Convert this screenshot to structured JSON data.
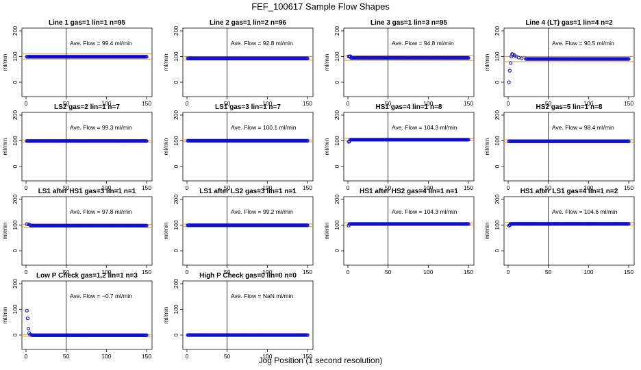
{
  "page": {
    "title": "FEF_100617  Sample Flow Shapes",
    "x_caption": "Jog Position (1 second resolution)"
  },
  "colors": {
    "points": "#1010cc",
    "ref_line": "#d49a3a",
    "axis": "#000000"
  },
  "chart_data": [
    {
      "type": "scatter",
      "title": "Line 1 gas=1 lin=1 n=95",
      "ylabel": "ml/min",
      "xlim": [
        0,
        150
      ],
      "ylim": [
        -20,
        200
      ],
      "xticks": [
        0,
        50,
        100,
        150
      ],
      "yticks": [
        0,
        100,
        200
      ],
      "vline_x": 50,
      "ref_band": [
        90,
        110
      ],
      "annotation": "Ave. Flow = 99.4  ml/min",
      "level": 99.4,
      "lead": []
    },
    {
      "type": "scatter",
      "title": "Line 2 gas=1 lin=2 n=96",
      "ylabel": "ml/min",
      "xlim": [
        0,
        150
      ],
      "ylim": [
        -20,
        200
      ],
      "xticks": [
        0,
        50,
        100,
        150
      ],
      "yticks": [
        0,
        100,
        200
      ],
      "vline_x": 50,
      "ref_band": [
        86,
        100
      ],
      "annotation": "Ave. Flow = 92.8  ml/min",
      "level": 92.8,
      "lead": []
    },
    {
      "type": "scatter",
      "title": "Line 3 gas=1 lin=3 n=95",
      "ylabel": "ml/min",
      "xlim": [
        0,
        150
      ],
      "ylim": [
        -20,
        200
      ],
      "xticks": [
        0,
        50,
        100,
        150
      ],
      "yticks": [
        0,
        100,
        200
      ],
      "vline_x": 50,
      "ref_band": [
        85,
        105
      ],
      "annotation": "Ave. Flow = 94.8  ml/min",
      "level": 94.8,
      "lead": [
        [
          1,
          100
        ],
        [
          2,
          101
        ],
        [
          3,
          101
        ]
      ]
    },
    {
      "type": "scatter",
      "title": "Line 4 (LT) gas=1 lin=4 n=2",
      "ylabel": "ml/min",
      "xlim": [
        0,
        150
      ],
      "ylim": [
        -20,
        200
      ],
      "xticks": [
        0,
        50,
        100,
        150
      ],
      "yticks": [
        0,
        100,
        200
      ],
      "vline_x": 50,
      "ref_band": [
        80,
        100
      ],
      "annotation": "Ave. Flow = 90.5  ml/min",
      "level": 90.5,
      "lead": [
        [
          1,
          0
        ],
        [
          2,
          45
        ],
        [
          3,
          75
        ],
        [
          4,
          100
        ],
        [
          5,
          110
        ],
        [
          6,
          108
        ],
        [
          8,
          105
        ],
        [
          10,
          100
        ],
        [
          13,
          96
        ],
        [
          17,
          93
        ],
        [
          22,
          91
        ]
      ]
    },
    {
      "type": "scatter",
      "title": "LS2 gas=2 lin=1 n=7",
      "ylabel": "ml/min",
      "xlim": [
        0,
        150
      ],
      "ylim": [
        -20,
        200
      ],
      "xticks": [
        0,
        50,
        100,
        150
      ],
      "yticks": [
        0,
        100,
        200
      ],
      "vline_x": 50,
      "ref_band": [
        95,
        102
      ],
      "annotation": "Ave. Flow = 99.3  ml/min",
      "level": 99.3,
      "lead": []
    },
    {
      "type": "scatter",
      "title": "LS1 gas=3 lin=1 n=7",
      "ylabel": "ml/min",
      "xlim": [
        0,
        150
      ],
      "ylim": [
        -20,
        200
      ],
      "xticks": [
        0,
        50,
        100,
        150
      ],
      "yticks": [
        0,
        100,
        200
      ],
      "vline_x": 50,
      "ref_band": [
        96,
        104
      ],
      "annotation": "Ave. Flow = 100.1  ml/min",
      "level": 100.1,
      "lead": []
    },
    {
      "type": "scatter",
      "title": "HS1 gas=4 lin=1 n=8",
      "ylabel": "ml/min",
      "xlim": [
        0,
        150
      ],
      "ylim": [
        -20,
        200
      ],
      "xticks": [
        0,
        50,
        100,
        150
      ],
      "yticks": [
        0,
        100,
        200
      ],
      "vline_x": 50,
      "ref_band": [
        100,
        109
      ],
      "annotation": "Ave. Flow = 104.3  ml/min",
      "level": 104.3,
      "lead": [
        [
          1,
          96
        ],
        [
          2,
          98
        ]
      ]
    },
    {
      "type": "scatter",
      "title": "HS2 gas=5 lin=1 n=8",
      "ylabel": "ml/min",
      "xlim": [
        0,
        150
      ],
      "ylim": [
        -20,
        200
      ],
      "xticks": [
        0,
        50,
        100,
        150
      ],
      "yticks": [
        0,
        100,
        200
      ],
      "vline_x": 50,
      "ref_band": [
        92,
        104
      ],
      "annotation": "Ave. Flow = 98.4  ml/min",
      "level": 98.4,
      "lead": []
    },
    {
      "type": "scatter",
      "title": "LS1 after HS1 gas=3 lin=1 n=1",
      "ylabel": "ml/min",
      "xlim": [
        0,
        150
      ],
      "ylim": [
        -20,
        200
      ],
      "xticks": [
        0,
        50,
        100,
        150
      ],
      "yticks": [
        0,
        100,
        200
      ],
      "vline_x": 50,
      "ref_band": [
        92,
        102
      ],
      "annotation": "Ave. Flow = 97.8  ml/min",
      "level": 97.8,
      "lead": [
        [
          1,
          104
        ],
        [
          3,
          103
        ],
        [
          5,
          101
        ]
      ]
    },
    {
      "type": "scatter",
      "title": "LS1 after LS2 gas=3 lin=1 n=1",
      "ylabel": "ml/min",
      "xlim": [
        0,
        150
      ],
      "ylim": [
        -20,
        200
      ],
      "xticks": [
        0,
        50,
        100,
        150
      ],
      "yticks": [
        0,
        100,
        200
      ],
      "vline_x": 50,
      "ref_band": [
        94,
        104
      ],
      "annotation": "Ave. Flow = 99.2  ml/min",
      "level": 99.2,
      "lead": []
    },
    {
      "type": "scatter",
      "title": "HS1 after HS2 gas=4 lin=1 n=1",
      "ylabel": "ml/min",
      "xlim": [
        0,
        150
      ],
      "ylim": [
        -20,
        200
      ],
      "xticks": [
        0,
        50,
        100,
        150
      ],
      "yticks": [
        0,
        100,
        200
      ],
      "vline_x": 50,
      "ref_band": [
        100,
        109
      ],
      "annotation": "Ave. Flow = 104.3  ml/min",
      "level": 104.3,
      "lead": [
        [
          1,
          98
        ]
      ]
    },
    {
      "type": "scatter",
      "title": "HS1 after LS1 gas=4 lin=1 n=2",
      "ylabel": "ml/min",
      "xlim": [
        0,
        150
      ],
      "ylim": [
        -20,
        200
      ],
      "xticks": [
        0,
        50,
        100,
        150
      ],
      "yticks": [
        0,
        100,
        200
      ],
      "vline_x": 50,
      "ref_band": [
        100,
        110
      ],
      "annotation": "Ave. Flow = 104.6  ml/min",
      "level": 104.6,
      "lead": [
        [
          1,
          98
        ],
        [
          2,
          100
        ]
      ]
    },
    {
      "type": "scatter",
      "title": "Low P Check gas=1,2 lin=1 n=3",
      "ylabel": "ml/min",
      "xlim": [
        0,
        150
      ],
      "ylim": [
        -20,
        200
      ],
      "xticks": [
        0,
        50,
        100,
        150
      ],
      "yticks": [
        0,
        100,
        200
      ],
      "vline_x": 50,
      "ref_band": [
        -4,
        2
      ],
      "annotation": "Ave. Flow = −0.7  ml/min",
      "level": -0.7,
      "lead": [
        [
          1,
          95
        ],
        [
          2,
          65
        ],
        [
          3,
          25
        ],
        [
          4,
          8
        ],
        [
          5,
          2
        ],
        [
          7,
          0
        ]
      ]
    },
    {
      "type": "scatter",
      "title": "High P Check gas=0 lin=0 n=0",
      "ylabel": "ml/min",
      "xlim": [
        0,
        150
      ],
      "ylim": [
        -20,
        200
      ],
      "xticks": [
        0,
        50,
        100,
        150
      ],
      "yticks": [
        0,
        100,
        200
      ],
      "vline_x": 50,
      "ref_band": [],
      "annotation": "Ave. Flow =  NaN  ml/min",
      "level": 0,
      "lead": []
    }
  ]
}
